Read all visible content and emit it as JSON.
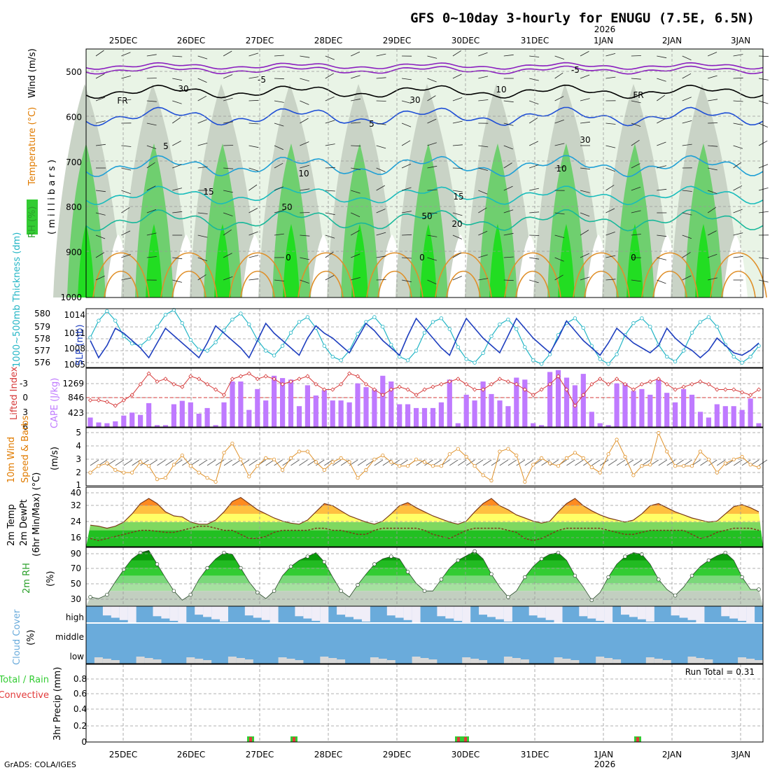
{
  "title": "GFS 0~10day 3-hourly for ENUGU (7.5E, 6.5N)",
  "year_label": "2026",
  "dates": [
    "25DEC",
    "26DEC",
    "27DEC",
    "28DEC",
    "29DEC",
    "30DEC",
    "31DEC",
    "1JAN",
    "2JAN",
    "3JAN"
  ],
  "footer": "GrADS: COLA/IGES",
  "colors": {
    "rh": "#33cc33",
    "temp": "#e07b00",
    "wind": "#000000",
    "slp": "#1f3fbf",
    "thick": "#22b5c5",
    "cape": "#bf7aff",
    "li": "#d63a3a",
    "wind10": "#e0922a",
    "rh2m": "#22a022",
    "cloud": "#6aabdb",
    "precip": "#33cc33",
    "conv": "#e23a3a"
  },
  "upper_air": {
    "ylabel_rh": "RH (%)",
    "ylabel_temp": "Temperature (°C)",
    "ylabel_wind": "Wind (m/s)",
    "ylabel_mb": "( m i l l i b a r s )",
    "ticks": [
      "500",
      "600",
      "700",
      "800",
      "900",
      "1000"
    ],
    "isotherm_labels": [
      "-5",
      "-5",
      "5",
      "5",
      "10",
      "10",
      "15",
      "15",
      "20",
      "0",
      "0",
      "0"
    ],
    "freezing_labels": [
      "FR",
      "FR"
    ],
    "rh_labels": [
      "30",
      "30",
      "30",
      "10",
      "50",
      "50"
    ]
  },
  "slp_panel": {
    "ylabel_left": "1000~500mb Thickness (dm)",
    "ylabel_right": "SLP (mb)",
    "thick_ticks": [
      "580",
      "579",
      "578",
      "577",
      "576"
    ],
    "slp_ticks": [
      "1014",
      "1011",
      "1008",
      "1005"
    ]
  },
  "cape_panel": {
    "ylabel_left": "Lifted Index",
    "ylabel_right": "CAPE (J/kg)",
    "li_ticks": [
      "-3",
      "0",
      "3",
      "6"
    ],
    "cape_ticks": [
      "1269",
      "846",
      "423"
    ]
  },
  "wind_panel": {
    "ylabel_a": "10m Wind",
    "ylabel_b": "Speed & Barbs",
    "ylabel_c": "(m/s)",
    "ticks": [
      "5",
      "4",
      "3",
      "2",
      "1"
    ]
  },
  "temp_panel": {
    "ylabel_a": "2m Temp",
    "ylabel_b": "2m DewPt",
    "ylabel_c": "(6hr Min/Max) (°C)",
    "ticks": [
      "40",
      "32",
      "24",
      "16"
    ]
  },
  "rh_panel": {
    "ylabel_a": "2m RH",
    "ylabel_b": "(%)",
    "ticks": [
      "90",
      "70",
      "50",
      "30"
    ]
  },
  "cloud_panel": {
    "ylabel_a": "Cloud Cover",
    "ylabel_b": "(%)",
    "levels": [
      "high",
      "middle",
      "low"
    ]
  },
  "precip_panel": {
    "ylabel_a": "Total / Rain",
    "ylabel_b": "Convective",
    "ylabel_c": "3hr Precip (mm)",
    "ticks": [
      "0.8",
      "0.6",
      "0.4",
      "0.2",
      "0"
    ],
    "run_total": "Run Total = 0.31"
  },
  "chart_data": [
    {
      "type": "line",
      "title": "SLP (mb)",
      "ylim": [
        1004,
        1016
      ],
      "x_step_hours": 3,
      "values": [
        1009.5,
        1006,
        1008.5,
        1012,
        1011,
        1009.5,
        1008,
        1006,
        1009,
        1012,
        1010.5,
        1009,
        1007.5,
        1006,
        1009,
        1012.5,
        1011,
        1009.5,
        1008,
        1006,
        1009.5,
        1013,
        1011,
        1009.5,
        1008,
        1006.5,
        1010,
        1012.5,
        1011,
        1010,
        1008.5,
        1007,
        1010,
        1013,
        1011.5,
        1009.5,
        1008,
        1006.5,
        1010.5,
        1014,
        1012,
        1010,
        1008,
        1006.5,
        1010.5,
        1014,
        1012,
        1010,
        1008.5,
        1007,
        1010.5,
        1014,
        1012,
        1010,
        1008.5,
        1007,
        1010,
        1013.5,
        1011.5,
        1009.5,
        1008,
        1006.5,
        1009,
        1012,
        1010.5,
        1009,
        1008,
        1007,
        1008.5,
        1012,
        1010,
        1008.5,
        1007.5,
        1006,
        1007.5,
        1010,
        1008.5,
        1007,
        1006.5,
        1007.5,
        1009
      ]
    },
    {
      "type": "line",
      "title": "1000~500mb Thickness (dm)",
      "ylim": [
        575.7,
        580.6
      ],
      "values": [
        578.2,
        579.6,
        580.4,
        579.6,
        578.3,
        577.7,
        577.5,
        578.1,
        579.1,
        580.1,
        580.5,
        579.4,
        578.0,
        577.2,
        577.1,
        577.8,
        578.8,
        579.7,
        580.2,
        579.3,
        578.0,
        577.1,
        576.7,
        577.5,
        578.6,
        579.5,
        579.9,
        579.0,
        577.5,
        576.6,
        576.3,
        577.1,
        578.5,
        579.5,
        579.9,
        579.1,
        577.6,
        576.6,
        576.3,
        577.1,
        578.6,
        579.5,
        579.8,
        578.9,
        577.4,
        576.4,
        576.1,
        576.9,
        578.3,
        579.3,
        579.7,
        578.9,
        577.4,
        576.3,
        576.0,
        576.8,
        578.4,
        579.4,
        579.8,
        579.0,
        577.5,
        576.4,
        576.0,
        576.8,
        578.4,
        579.4,
        579.8,
        579.1,
        577.6,
        576.6,
        576.2,
        577.1,
        578.6,
        579.5,
        579.9,
        579.1,
        577.6,
        576.6,
        576.1,
        576.6,
        577.5
      ]
    },
    {
      "type": "bar",
      "title": "CAPE (J/kg)",
      "ylim": [
        0,
        1550
      ],
      "values": [
        250,
        120,
        100,
        150,
        300,
        380,
        320,
        630,
        50,
        50,
        600,
        690,
        650,
        350,
        500,
        50,
        650,
        1200,
        1200,
        450,
        1000,
        700,
        1350,
        1290,
        1250,
        550,
        1100,
        830,
        970,
        700,
        700,
        650,
        1150,
        1050,
        1000,
        1350,
        1200,
        600,
        600,
        500,
        500,
        500,
        650,
        1250,
        100,
        850,
        700,
        1200,
        870,
        700,
        550,
        1300,
        1250,
        100,
        50,
        1450,
        1500,
        1300,
        1100,
        1400,
        400,
        100,
        50,
        1150,
        1150,
        950,
        1000,
        850,
        1250,
        900,
        650,
        1000,
        850,
        400,
        250,
        600,
        550,
        550,
        450,
        750,
        100
      ]
    },
    {
      "type": "line",
      "title": "Lifted Index",
      "ylim": [
        6,
        -5
      ],
      "values": [
        1,
        1,
        1.3,
        2,
        1,
        0,
        -2,
        -4,
        -2.5,
        -3,
        -2,
        -1.5,
        -3.5,
        -3,
        -2,
        -1,
        0,
        -3,
        -3.5,
        -4,
        -3,
        -3.5,
        -3,
        -2,
        -2.5,
        -3,
        -3.5,
        -2,
        -1,
        -1,
        -2,
        -4,
        -3.5,
        -2,
        -1,
        0,
        -1,
        -1.5,
        -1,
        0,
        -1,
        -1.5,
        -2,
        -2.5,
        -3,
        -2,
        -1,
        -1,
        -2,
        -3,
        -2.5,
        -2,
        -1,
        0,
        -1,
        -2,
        -3.5,
        -1,
        2,
        0,
        -2,
        -3,
        -2,
        -3,
        -2,
        -1,
        -2,
        -2.5,
        -3,
        -2,
        -1,
        -1.5,
        -2,
        -2.5,
        -2,
        -1,
        -1,
        -1,
        -0.5,
        0,
        -1
      ]
    },
    {
      "type": "line",
      "title": "10m Wind Speed (m/s)",
      "ylim": [
        1,
        5.4
      ],
      "values": [
        2,
        2.5,
        2.7,
        2.2,
        2,
        2,
        2.8,
        2.5,
        1.5,
        1.6,
        2.6,
        3.3,
        2.5,
        2,
        1.6,
        1.3,
        3.5,
        4.2,
        3,
        1.7,
        2.5,
        3.1,
        3,
        2.2,
        3.1,
        3.6,
        3.6,
        2.8,
        2.2,
        2.8,
        3.1,
        2.8,
        1.6,
        2.2,
        3,
        3.3,
        2.8,
        2.5,
        2.5,
        3,
        2.8,
        2.5,
        2.5,
        3.4,
        3.8,
        3.2,
        2.5,
        1.8,
        1.4,
        3.6,
        3.8,
        3.3,
        1.3,
        2.6,
        3.1,
        2.7,
        2.5,
        3.1,
        3.5,
        3.1,
        2.4,
        2,
        3.4,
        4.5,
        3.2,
        1.8,
        2.5,
        2.6,
        5,
        3.6,
        2.5,
        2.5,
        2.5,
        3.6,
        3,
        2,
        2.7,
        3,
        3.2,
        2.6,
        2.4
      ]
    },
    {
      "type": "area",
      "title": "2m Temp (°C)",
      "ylim": [
        12,
        41
      ],
      "values": [
        22.5,
        22,
        21,
        22,
        24,
        28,
        33,
        35.5,
        33,
        29,
        27,
        26.5,
        24,
        23,
        23,
        25,
        29,
        34,
        36,
        33,
        30,
        28,
        26,
        24.5,
        23.5,
        23,
        25,
        29,
        33,
        32,
        29.5,
        27,
        25.5,
        24,
        23,
        24.5,
        28,
        32,
        33.5,
        31,
        29,
        27,
        25.5,
        24,
        23,
        24.5,
        29,
        33,
        35.5,
        32,
        30,
        27.5,
        26,
        24.5,
        23.5,
        24.5,
        29,
        33,
        35.5,
        32,
        29.5,
        27.5,
        26,
        25,
        24,
        25,
        28,
        32,
        33,
        31,
        29,
        27.5,
        26,
        25,
        24,
        24.5,
        28,
        31.5,
        32.5,
        31,
        29
      ]
    },
    {
      "type": "line",
      "title": "2m DewPt (°C)",
      "ylim": [
        12,
        41
      ],
      "values": [
        16,
        15,
        16,
        17,
        18,
        19,
        20,
        20,
        19.5,
        19,
        19,
        20,
        21,
        22,
        22,
        21,
        20,
        20,
        18,
        16,
        16,
        17,
        19,
        20,
        20,
        20,
        20,
        21,
        21,
        20,
        20,
        19,
        18,
        18,
        20,
        21,
        21,
        21,
        21,
        21,
        20,
        18,
        17,
        16,
        18,
        20,
        21,
        21,
        21,
        21,
        20,
        19,
        16,
        15,
        16,
        18,
        20,
        21,
        21,
        21,
        21,
        21,
        20,
        19,
        18,
        18,
        19,
        20,
        20,
        20,
        20,
        20,
        18,
        16,
        17,
        19,
        20,
        21,
        21,
        21,
        20
      ]
    },
    {
      "type": "area",
      "title": "2m RH (%)",
      "ylim": [
        20,
        97
      ],
      "values": [
        32,
        30,
        35,
        52,
        68,
        82,
        90,
        93,
        75,
        57,
        40,
        28,
        35,
        55,
        70,
        82,
        90,
        88,
        70,
        52,
        38,
        30,
        40,
        60,
        72,
        80,
        85,
        90,
        78,
        58,
        40,
        32,
        48,
        62,
        75,
        82,
        85,
        82,
        65,
        50,
        40,
        40,
        55,
        70,
        80,
        86,
        92,
        82,
        62,
        45,
        32,
        40,
        58,
        72,
        82,
        88,
        90,
        80,
        60,
        45,
        28,
        38,
        58,
        75,
        85,
        90,
        88,
        75,
        55,
        42,
        34,
        45,
        60,
        72,
        80,
        86,
        90,
        80,
        58,
        42,
        42
      ]
    }
  ]
}
